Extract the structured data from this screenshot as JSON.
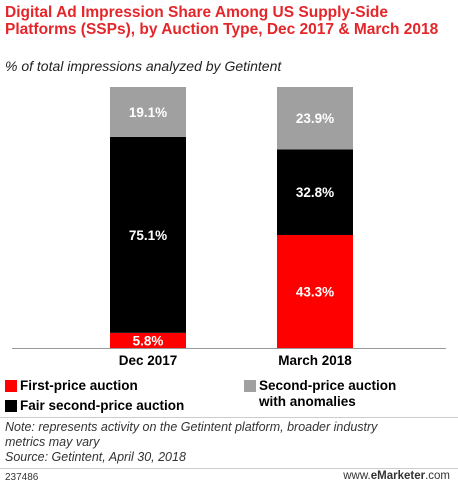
{
  "title": "Digital Ad Impression Share Among US Supply-Side Platforms (SSPs), by Auction Type, Dec 2017 & March 2018",
  "subtitle": "% of total impressions analyzed by Getintent",
  "colors": {
    "title": "#e4262b",
    "first_price": "#ff0000",
    "fair_second_price": "#000000",
    "second_price_anomalies": "#a0a0a0"
  },
  "chart_data": {
    "type": "bar",
    "stacked": true,
    "categories": [
      "Dec 2017",
      "March 2018"
    ],
    "ylim": [
      0,
      100
    ],
    "grid": false,
    "legend_position": "bottom",
    "series": [
      {
        "name": "First-price auction",
        "color": "#ff0000",
        "values": [
          5.8,
          43.3
        ],
        "labels": [
          "5.8%",
          "43.3%"
        ]
      },
      {
        "name": "Fair second-price auction",
        "color": "#000000",
        "values": [
          75.1,
          32.8
        ],
        "labels": [
          "75.1%",
          "32.8%"
        ]
      },
      {
        "name": "Second-price auction with anomalies",
        "color": "#a0a0a0",
        "values": [
          19.1,
          23.9
        ],
        "labels": [
          "19.1%",
          "23.9%"
        ]
      }
    ]
  },
  "legend": {
    "first": "First-price auction",
    "fair": "Fair second-price auction",
    "second_line1": "Second-price auction",
    "second_line2": "with anomalies"
  },
  "note": {
    "line1": "Note: represents activity on the Getintent platform, broader industry",
    "line2": "metrics may vary",
    "source": "Source: Getintent, April 30, 2018"
  },
  "footer": {
    "chart_id": "237486",
    "brand_prefix": "www.",
    "brand_name": "eMarketer",
    "brand_suffix": ".com"
  }
}
